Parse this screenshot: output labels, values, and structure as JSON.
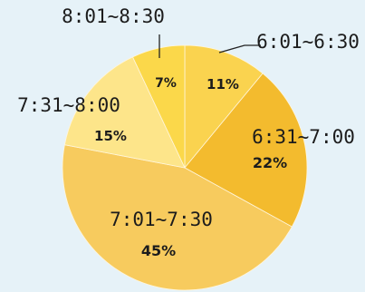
{
  "chart_data": {
    "type": "pie",
    "title": "",
    "start_angle_deg": 0,
    "direction": "clockwise",
    "slices": [
      {
        "label": "6:01~6:30",
        "value": 11,
        "value_label": "11%",
        "color": "#fad34f"
      },
      {
        "label": "6:31~7:00",
        "value": 22,
        "value_label": "22%",
        "color": "#f3bb2e"
      },
      {
        "label": "7:01~7:30",
        "value": 45,
        "value_label": "45%",
        "color": "#f7cb5e"
      },
      {
        "label": "7:31~8:00",
        "value": 15,
        "value_label": "15%",
        "color": "#fde58a"
      },
      {
        "label": "8:01~8:30",
        "value": 7,
        "value_label": "7%",
        "color": "#fbd84a"
      }
    ]
  }
}
